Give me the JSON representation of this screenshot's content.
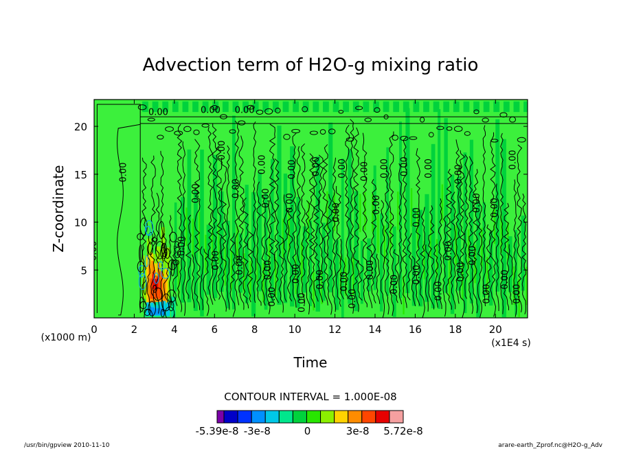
{
  "chart_data": {
    "type": "heatmap",
    "title": "Advection term of H2O-g mixing ratio",
    "xlabel": "Time",
    "ylabel": "Z-coordinate",
    "x_unit_label": "(x1E4 s)",
    "y_unit_label": "(x1000 m)",
    "xlim": [
      0,
      21.6
    ],
    "ylim": [
      0,
      22.8
    ],
    "x_ticks": [
      0,
      2,
      4,
      6,
      8,
      10,
      12,
      14,
      16,
      18,
      20
    ],
    "y_ticks": [
      5,
      10,
      15,
      20
    ],
    "contour_label": "0.00",
    "contour_interval_text": "CONTOUR INTERVAL = 1.000E-08",
    "colorbar": {
      "colors": [
        "#7b00a8",
        "#0000c8",
        "#0032ff",
        "#0090ff",
        "#00c8e6",
        "#00e68c",
        "#00d23c",
        "#28e600",
        "#8cf000",
        "#ffd200",
        "#ff8c00",
        "#ff4600",
        "#e60000",
        "#f5a0a0"
      ],
      "labels": [
        "-5.39e-8",
        "-3e-8",
        "0",
        "3e-8",
        "5.72e-8"
      ],
      "label_values": [
        -5.39e-08,
        -3e-08,
        0,
        3e-08,
        5.72e-08
      ],
      "range": [
        -5.39e-08,
        5.72e-08
      ]
    },
    "background_color": "#3cf03c",
    "features": [
      {
        "region": "t 0-2.3, z 0-22.8",
        "value": "near 0",
        "color": "#3cf03c"
      },
      {
        "region": "t 2.3-4, z 0-10",
        "value": "positive up to 5.72e-8",
        "color": "#ff4600"
      },
      {
        "region": "t 2.5-4, z 0-3",
        "value": "negative down to -5.39e-8",
        "color": "#0090ff"
      },
      {
        "region": "t 4-21.6, z 0-22.8",
        "value": "alternating +/- 1e-8 columns",
        "color": "#00d23c"
      }
    ]
  },
  "footer": {
    "left": "/usr/bin/gpview   2010-11-10",
    "right": "arare-earth_Zprof.nc@H2O-g_Adv"
  }
}
